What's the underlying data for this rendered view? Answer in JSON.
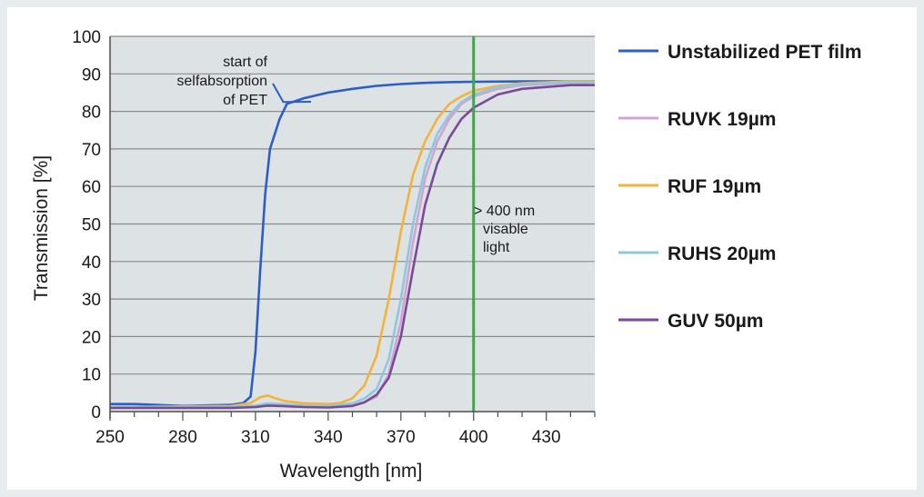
{
  "chart_data": {
    "type": "line",
    "xlabel": "Wavelength [nm]",
    "ylabel": "Transmission [%]",
    "xlim": [
      250,
      450
    ],
    "ylim": [
      0,
      100
    ],
    "x_ticks": [
      250,
      280,
      310,
      340,
      370,
      400,
      430
    ],
    "y_ticks": [
      0,
      10,
      20,
      30,
      40,
      50,
      60,
      70,
      80,
      90,
      100
    ],
    "grid": "horizontal",
    "legend_position": "right",
    "series": [
      {
        "name": "Unstabilized PET film",
        "color": "#2c5fc4",
        "points": [
          [
            250,
            2
          ],
          [
            260,
            2
          ],
          [
            280,
            1.5
          ],
          [
            300,
            1.8
          ],
          [
            305,
            2.3
          ],
          [
            308,
            4
          ],
          [
            310,
            16
          ],
          [
            312,
            38
          ],
          [
            314,
            58
          ],
          [
            316,
            70
          ],
          [
            320,
            78
          ],
          [
            323,
            82
          ],
          [
            330,
            83.5
          ],
          [
            340,
            85
          ],
          [
            350,
            86
          ],
          [
            360,
            86.8
          ],
          [
            370,
            87.3
          ],
          [
            380,
            87.6
          ],
          [
            390,
            87.8
          ],
          [
            400,
            87.9
          ],
          [
            420,
            88
          ],
          [
            450,
            88
          ]
        ]
      },
      {
        "name": "RUVK 19µm",
        "color": "#d3a3d3",
        "points": [
          [
            250,
            1.2
          ],
          [
            300,
            1.2
          ],
          [
            310,
            1.5
          ],
          [
            315,
            2
          ],
          [
            320,
            1.8
          ],
          [
            330,
            1.4
          ],
          [
            340,
            1.2
          ],
          [
            350,
            1.6
          ],
          [
            355,
            2.5
          ],
          [
            360,
            4
          ],
          [
            365,
            10
          ],
          [
            370,
            24
          ],
          [
            375,
            45
          ],
          [
            380,
            62
          ],
          [
            385,
            72
          ],
          [
            390,
            78
          ],
          [
            395,
            82
          ],
          [
            400,
            84
          ],
          [
            410,
            86
          ],
          [
            420,
            87
          ],
          [
            440,
            87.5
          ],
          [
            450,
            87.5
          ]
        ]
      },
      {
        "name": "RUF 19µm",
        "color": "#f2b33a",
        "points": [
          [
            250,
            1.2
          ],
          [
            300,
            1.5
          ],
          [
            308,
            2.3
          ],
          [
            312,
            3.8
          ],
          [
            315,
            4.3
          ],
          [
            318,
            3.6
          ],
          [
            322,
            2.8
          ],
          [
            330,
            2.2
          ],
          [
            340,
            2
          ],
          [
            345,
            2.3
          ],
          [
            350,
            3.5
          ],
          [
            355,
            7
          ],
          [
            360,
            15
          ],
          [
            365,
            30
          ],
          [
            370,
            48
          ],
          [
            375,
            63
          ],
          [
            380,
            72
          ],
          [
            385,
            78
          ],
          [
            390,
            82
          ],
          [
            395,
            84
          ],
          [
            400,
            85.5
          ],
          [
            410,
            86.8
          ],
          [
            420,
            87.5
          ],
          [
            440,
            88
          ],
          [
            450,
            88
          ]
        ]
      },
      {
        "name": "RUHS 20µm",
        "color": "#8fc7dd",
        "points": [
          [
            250,
            1.2
          ],
          [
            300,
            1.3
          ],
          [
            310,
            1.6
          ],
          [
            315,
            2.2
          ],
          [
            320,
            2
          ],
          [
            330,
            1.6
          ],
          [
            340,
            1.5
          ],
          [
            350,
            2.2
          ],
          [
            355,
            3.5
          ],
          [
            360,
            6
          ],
          [
            365,
            14
          ],
          [
            370,
            30
          ],
          [
            375,
            50
          ],
          [
            380,
            65
          ],
          [
            385,
            74
          ],
          [
            390,
            79
          ],
          [
            395,
            82.5
          ],
          [
            400,
            84.5
          ],
          [
            410,
            86.5
          ],
          [
            420,
            87.3
          ],
          [
            440,
            87.8
          ],
          [
            450,
            87.8
          ]
        ]
      },
      {
        "name": "GUV 50µm",
        "color": "#7b4a96",
        "points": [
          [
            250,
            1
          ],
          [
            300,
            1
          ],
          [
            310,
            1.2
          ],
          [
            315,
            1.6
          ],
          [
            320,
            1.5
          ],
          [
            330,
            1.2
          ],
          [
            340,
            1.1
          ],
          [
            350,
            1.5
          ],
          [
            355,
            2.5
          ],
          [
            360,
            4.5
          ],
          [
            365,
            9
          ],
          [
            370,
            20
          ],
          [
            375,
            38
          ],
          [
            380,
            55
          ],
          [
            385,
            66
          ],
          [
            390,
            73
          ],
          [
            395,
            78
          ],
          [
            400,
            81
          ],
          [
            410,
            84.5
          ],
          [
            420,
            86
          ],
          [
            440,
            87
          ],
          [
            450,
            87
          ]
        ]
      }
    ],
    "marker_line": {
      "x": 400,
      "color": "#3aa845"
    },
    "annotations": [
      {
        "lines": [
          "start of",
          "selfabsorption",
          "of PET"
        ],
        "x": 323,
        "y": 82
      },
      {
        "lines": [
          "> 400 nm",
          "visable",
          "light"
        ]
      }
    ],
    "colors": {
      "plot_background": "#dde2e5",
      "gridline": "#8c8c8c",
      "axis": "#4d4d4d"
    }
  }
}
